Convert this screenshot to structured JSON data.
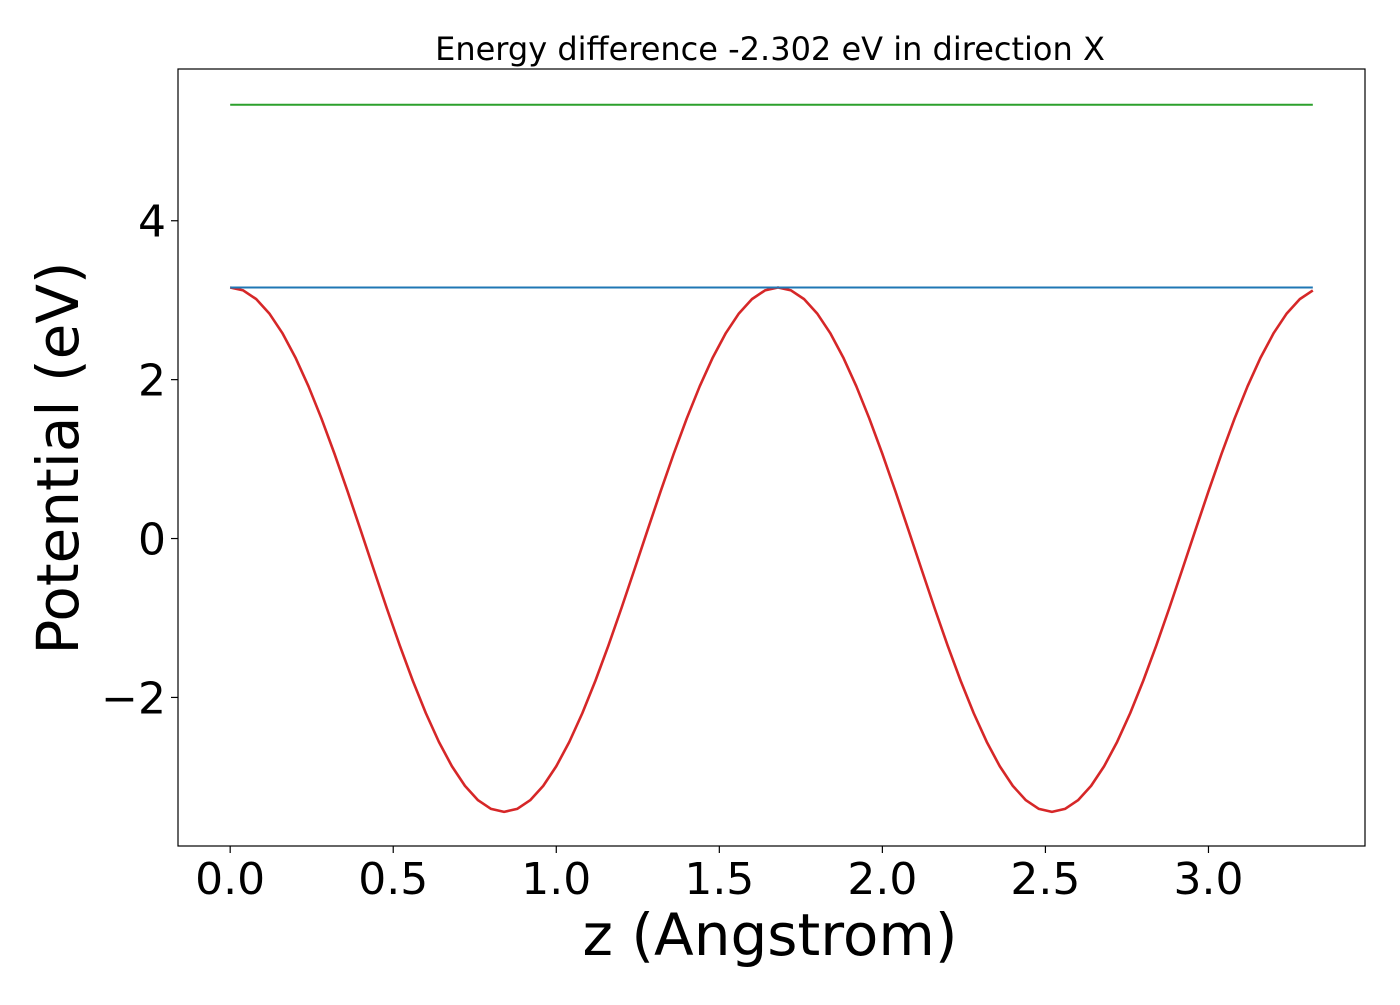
{
  "chart_data": {
    "type": "line",
    "title": "Energy difference -2.302 eV in direction X",
    "xlabel": "z (Angstrom)",
    "ylabel": "Potential (eV)",
    "xlim": [
      -0.16,
      3.48
    ],
    "ylim": [
      -3.87,
      5.91
    ],
    "xticks": [
      0.0,
      0.5,
      1.0,
      1.5,
      2.0,
      2.5,
      3.0
    ],
    "xtick_labels": [
      "0.0",
      "0.5",
      "1.0",
      "1.5",
      "2.0",
      "2.5",
      "3.0"
    ],
    "yticks": [
      -2,
      0,
      2,
      4
    ],
    "ytick_labels": [
      "−2",
      "0",
      "2",
      "4"
    ],
    "grid": false,
    "legend": null,
    "series": [
      {
        "color": "#d62728",
        "kind": "curve",
        "x_start": 0.0,
        "x_end": 3.32,
        "num_points": 84,
        "mean": -0.14,
        "amplitude": 3.3,
        "period": 1.68,
        "minima": [
          [
            0.84,
            -3.44
          ],
          [
            2.52,
            -3.44
          ]
        ],
        "maxima": [
          [
            0.0,
            3.16
          ],
          [
            1.68,
            3.16
          ],
          [
            3.32,
            3.15
          ]
        ]
      },
      {
        "color": "#1f77b4",
        "kind": "horizontal",
        "x": [
          0.0,
          3.32
        ],
        "y": [
          3.16,
          3.16
        ]
      },
      {
        "color": "#2ca02c",
        "kind": "horizontal",
        "x": [
          0.0,
          3.32
        ],
        "y": [
          5.46,
          5.46
        ]
      }
    ]
  }
}
